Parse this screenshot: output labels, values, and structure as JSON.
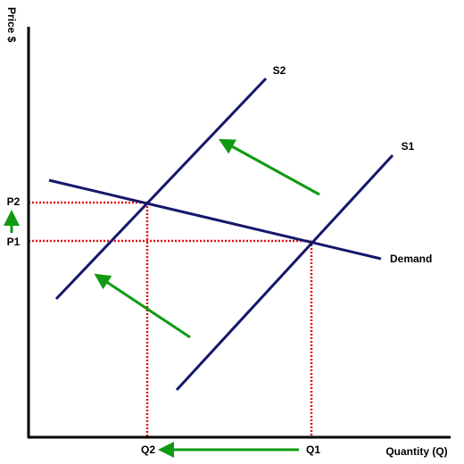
{
  "axes": {
    "y_label": "Price $",
    "x_label": "Quantity (Q)"
  },
  "curves": {
    "supply_1": "S1",
    "supply_2": "S2",
    "demand": "Demand"
  },
  "prices": {
    "p1": "P1",
    "p2": "P2"
  },
  "quantities": {
    "q1": "Q1",
    "q2": "Q2"
  }
}
